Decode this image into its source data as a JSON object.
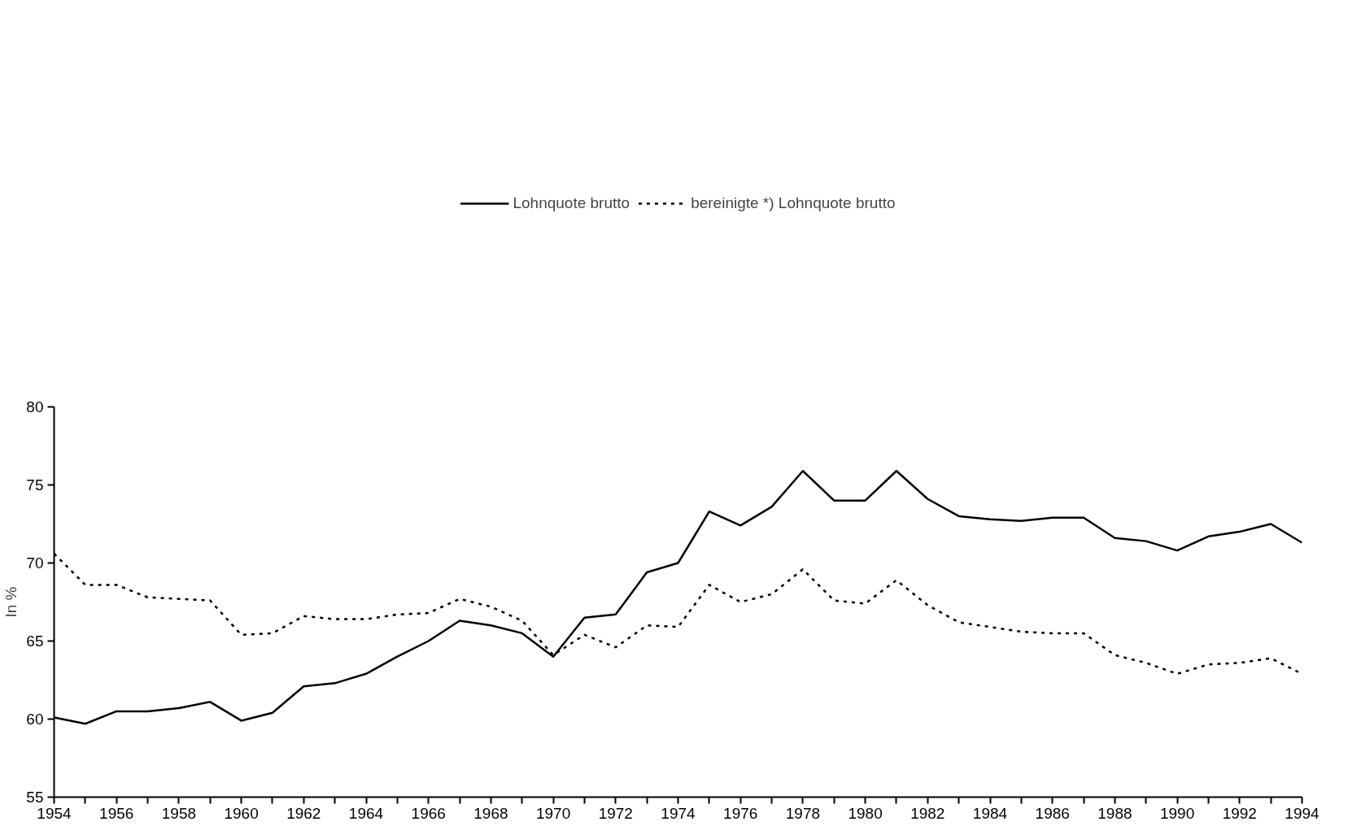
{
  "chart_data": {
    "type": "line",
    "ylabel": "In %",
    "legend": "top",
    "grid": false,
    "marker": "none",
    "x": [
      1954,
      1955,
      1956,
      1957,
      1958,
      1959,
      1960,
      1961,
      1962,
      1963,
      1964,
      1965,
      1966,
      1967,
      1968,
      1969,
      1970,
      1971,
      1972,
      1973,
      1974,
      1975,
      1976,
      1977,
      1978,
      1979,
      1980,
      1981,
      1982,
      1983,
      1984,
      1985,
      1986,
      1987,
      1988,
      1989,
      1990,
      1991,
      1992,
      1993,
      1994
    ],
    "xlim": [
      1954,
      1994
    ],
    "xticks": [
      1954,
      {
        "value": 1955,
        "label": null
      },
      1956,
      {
        "value": 1957,
        "label": null
      },
      1958,
      {
        "value": 1959,
        "label": null
      },
      1960,
      {
        "value": 1961,
        "label": null
      },
      1962,
      {
        "value": 1963,
        "label": null
      },
      1964,
      {
        "value": 1965,
        "label": null
      },
      1966,
      {
        "value": 1967,
        "label": null
      },
      1968,
      {
        "value": 1969,
        "label": null
      },
      1970,
      {
        "value": 1971,
        "label": null
      },
      1972,
      {
        "value": 1973,
        "label": null
      },
      1974,
      {
        "value": 1975,
        "label": null
      },
      1976,
      {
        "value": 1977,
        "label": null
      },
      1978,
      {
        "value": 1979,
        "label": null
      },
      1980,
      {
        "value": 1981,
        "label": null
      },
      1982,
      {
        "value": 1983,
        "label": null
      },
      1984,
      {
        "value": 1985,
        "label": null
      },
      1986,
      {
        "value": 1987,
        "label": null
      },
      1988,
      {
        "value": 1989,
        "label": null
      },
      1990,
      {
        "value": 1991,
        "label": null
      },
      1992,
      {
        "value": 1993,
        "label": null
      },
      1994
    ],
    "ylim": [
      55,
      80
    ],
    "yticks": [
      55,
      60,
      65,
      70,
      75,
      80
    ],
    "series": [
      {
        "name": "Lohnquote brutto",
        "color": "#000000",
        "line_style": "solid",
        "values": [
          60.1,
          59.7,
          60.5,
          60.5,
          60.7,
          61.1,
          59.9,
          60.4,
          62.1,
          62.3,
          62.9,
          64.0,
          65.0,
          66.3,
          66.0,
          65.5,
          64.0,
          66.5,
          66.7,
          69.4,
          70.0,
          73.3,
          72.4,
          73.6,
          75.9,
          74.0,
          74.0,
          75.9,
          74.1,
          73.0,
          72.8,
          72.7,
          72.9,
          72.9,
          71.6,
          71.4,
          70.8,
          71.7,
          72.0,
          72.5,
          71.3
        ]
      },
      {
        "name": "bereinigte *) Lohnquote brutto",
        "color": "#000000",
        "line_style": "dotted",
        "values": [
          70.6,
          68.6,
          68.6,
          67.8,
          67.7,
          67.6,
          65.4,
          65.5,
          66.6,
          66.4,
          66.4,
          66.7,
          66.8,
          67.7,
          67.2,
          66.3,
          64.1,
          65.4,
          64.6,
          66.0,
          65.9,
          68.6,
          67.5,
          68.0,
          69.6,
          67.6,
          67.4,
          68.9,
          67.3,
          66.2,
          65.9,
          65.6,
          65.5,
          65.5,
          64.1,
          63.6,
          62.9,
          63.5,
          63.6,
          63.9,
          62.9
        ]
      }
    ]
  }
}
